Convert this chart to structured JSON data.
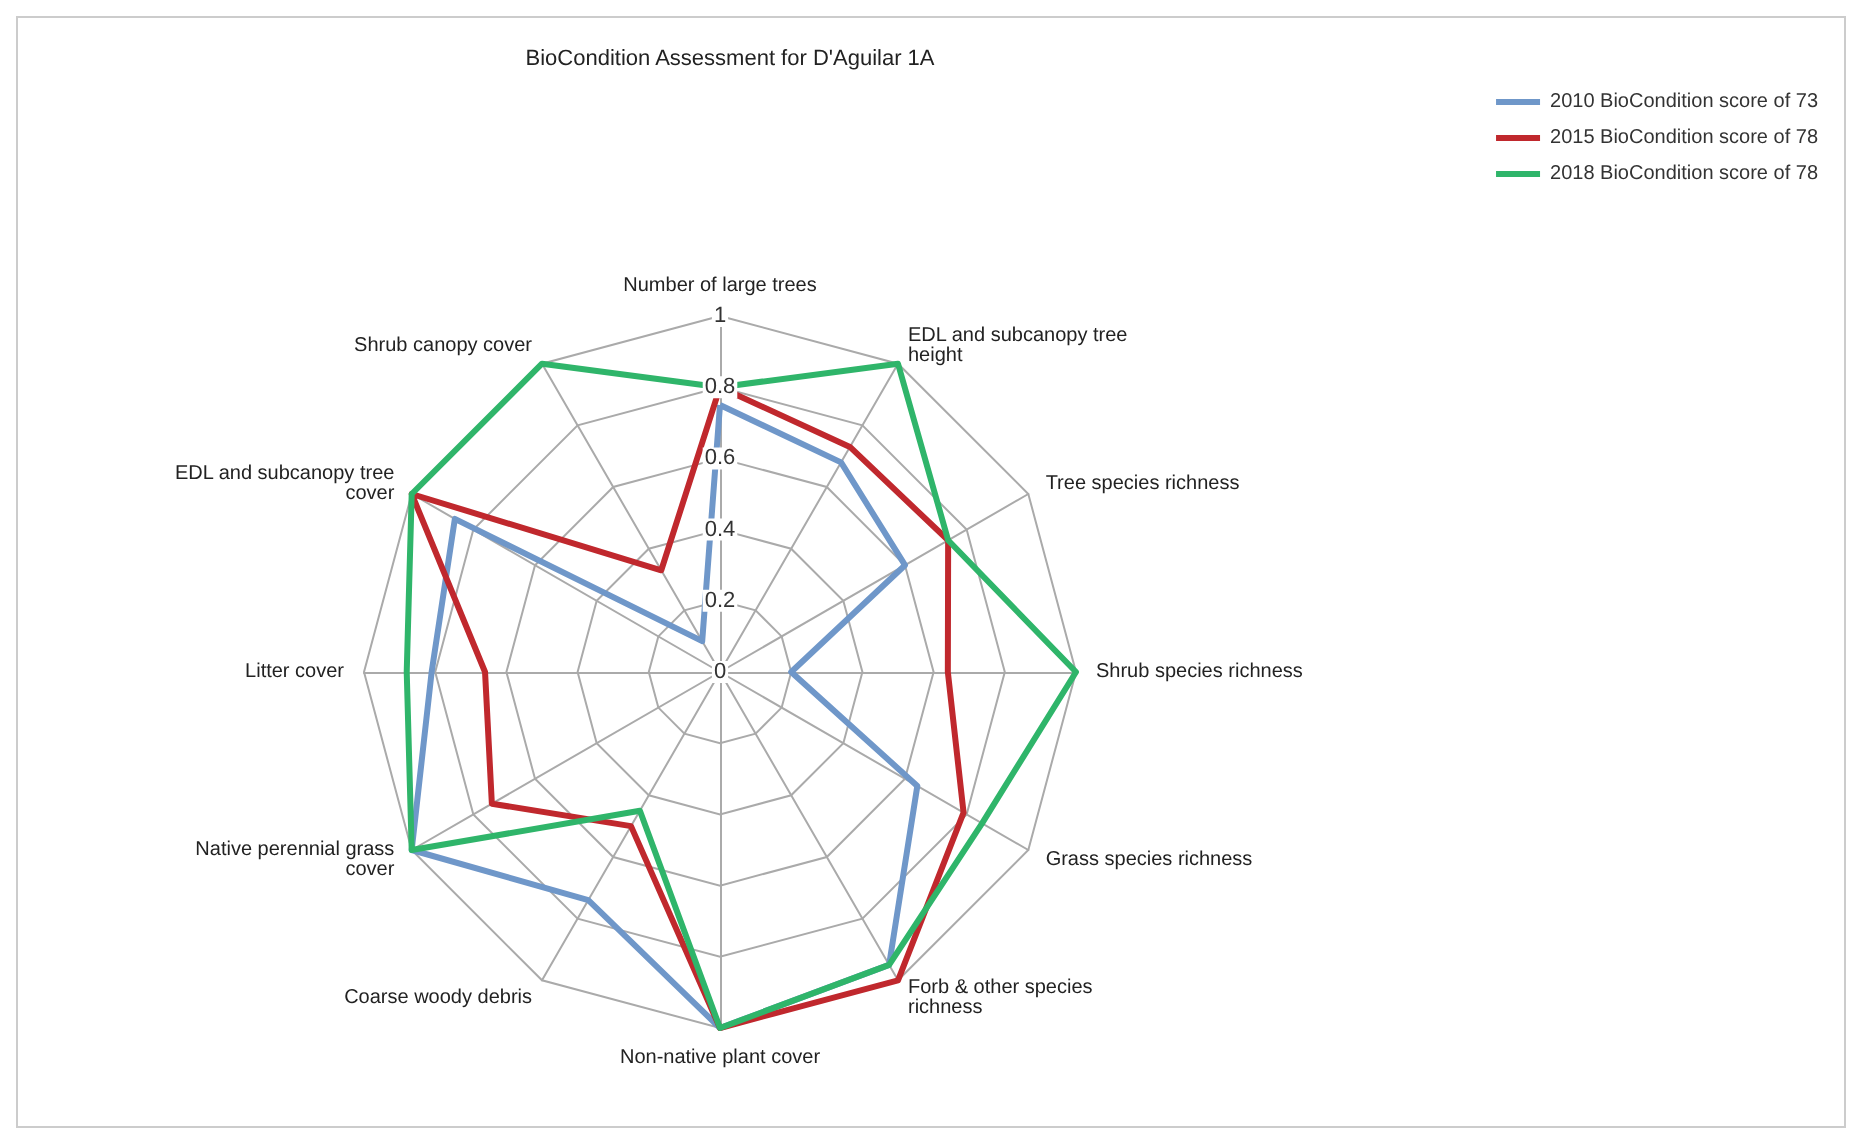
{
  "chart_data": {
    "type": "radar",
    "title": "BioCondition Assessment for D'Aguilar 1A",
    "categories": [
      "Number of large trees",
      "EDL and subcanopy tree height",
      "Tree species richness",
      "Shrub species richness",
      "Grass species richness",
      "Forb & other species richness",
      "Non-native plant cover",
      "Coarse woody debris",
      "Native perennial grass cover",
      "Litter cover",
      "EDL and subcanopy tree cover",
      "Shrub canopy cover"
    ],
    "series": [
      {
        "name": "2010 BioCondition score of 73",
        "color": "#6f97c9",
        "values": [
          0.75,
          0.68,
          0.6,
          0.2,
          0.64,
          0.95,
          1,
          0.74,
          1,
          0.81,
          0.86,
          0.1
        ]
      },
      {
        "name": "2015 BioCondition score of 78",
        "color": "#c0282d",
        "values": [
          0.8,
          0.73,
          0.74,
          0.64,
          0.79,
          1,
          1,
          0.5,
          0.74,
          0.66,
          1,
          0.33
        ]
      },
      {
        "name": "2018 BioCondition score of 78",
        "color": "#2fb56a",
        "values": [
          0.8,
          1,
          0.74,
          1,
          0.85,
          0.95,
          1,
          0.45,
          1,
          0.88,
          1,
          1
        ]
      }
    ],
    "ylim": [
      0,
      1
    ],
    "yticks": [
      0,
      0.2,
      0.4,
      0.6,
      0.8,
      1
    ],
    "legend": "top right",
    "marker": "none",
    "line_style": "solid"
  }
}
